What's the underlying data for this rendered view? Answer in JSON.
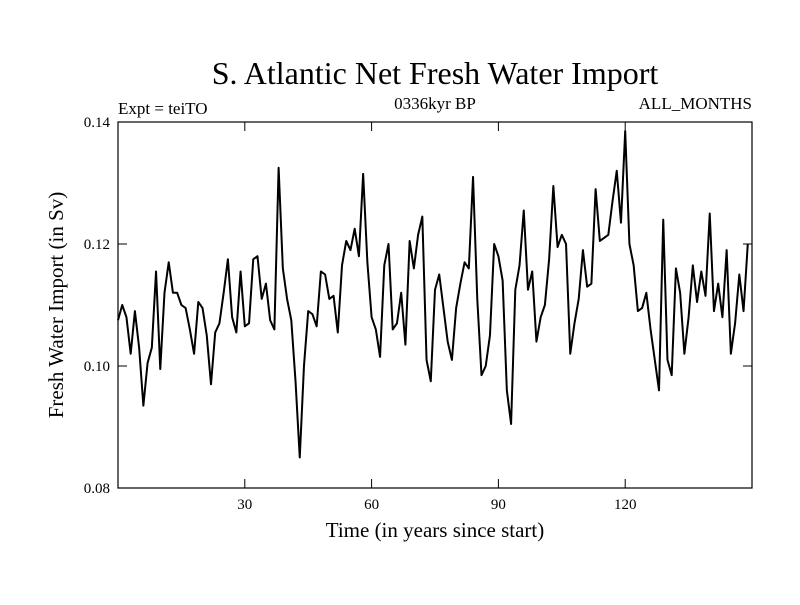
{
  "chart_data": {
    "type": "line",
    "title": "S. Atlantic Net Fresh Water Import",
    "experiment": "Expt = teiTO",
    "period": "0336kyr BP",
    "months": "ALL_MONTHS",
    "xlabel": "Time (in years since start)",
    "ylabel": "Fresh Water Import (in Sv)",
    "xlim": [
      0,
      150
    ],
    "ylim": [
      0.08,
      0.14
    ],
    "x_ticks": [
      30,
      60,
      90,
      120
    ],
    "x_tick_labels": [
      "30",
      "60",
      "90",
      "120"
    ],
    "y_ticks": [
      0.08,
      0.1,
      0.12,
      0.14
    ],
    "y_tick_labels": [
      "0.08",
      "0.10",
      "0.12",
      "0.14"
    ],
    "grid": false,
    "line_color": "#000000",
    "series": [
      {
        "name": "Fresh Water Import",
        "values": [
          0.1075,
          0.11,
          0.108,
          0.102,
          0.109,
          0.103,
          0.0935,
          0.1005,
          0.103,
          0.1155,
          0.0995,
          0.112,
          0.117,
          0.112,
          0.112,
          0.11,
          0.1095,
          0.106,
          0.102,
          0.1105,
          0.1095,
          0.105,
          0.097,
          0.1055,
          0.107,
          0.112,
          0.1175,
          0.108,
          0.1055,
          0.1155,
          0.1065,
          0.107,
          0.1175,
          0.118,
          0.111,
          0.1135,
          0.1075,
          0.106,
          0.1325,
          0.116,
          0.111,
          0.1075,
          0.0975,
          0.085,
          0.1,
          0.109,
          0.1085,
          0.1065,
          0.1155,
          0.115,
          0.111,
          0.1115,
          0.1055,
          0.1165,
          0.1205,
          0.119,
          0.1225,
          0.118,
          0.1315,
          0.117,
          0.108,
          0.106,
          0.1015,
          0.1165,
          0.12,
          0.106,
          0.107,
          0.112,
          0.1035,
          0.1205,
          0.116,
          0.1215,
          0.1245,
          0.101,
          0.0975,
          0.1125,
          0.115,
          0.1095,
          0.104,
          0.101,
          0.1095,
          0.1135,
          0.117,
          0.116,
          0.131,
          0.111,
          0.0985,
          0.1,
          0.105,
          0.12,
          0.118,
          0.114,
          0.096,
          0.0905,
          0.1125,
          0.1165,
          0.1255,
          0.1125,
          0.1155,
          0.104,
          0.108,
          0.11,
          0.1175,
          0.1295,
          0.1195,
          0.1215,
          0.12,
          0.102,
          0.107,
          0.111,
          0.119,
          0.113,
          0.1135,
          0.129,
          0.1205,
          0.121,
          0.1215,
          0.127,
          0.132,
          0.1235,
          0.1385,
          0.12,
          0.1165,
          0.109,
          0.1095,
          0.112,
          0.106,
          0.101,
          0.096,
          0.124,
          0.101,
          0.0985,
          0.116,
          0.112,
          0.102,
          0.108,
          0.1165,
          0.1105,
          0.1155,
          0.1115,
          0.125,
          0.109,
          0.1135,
          0.108,
          0.119,
          0.102,
          0.107,
          0.115,
          0.109,
          0.12
        ]
      }
    ]
  }
}
